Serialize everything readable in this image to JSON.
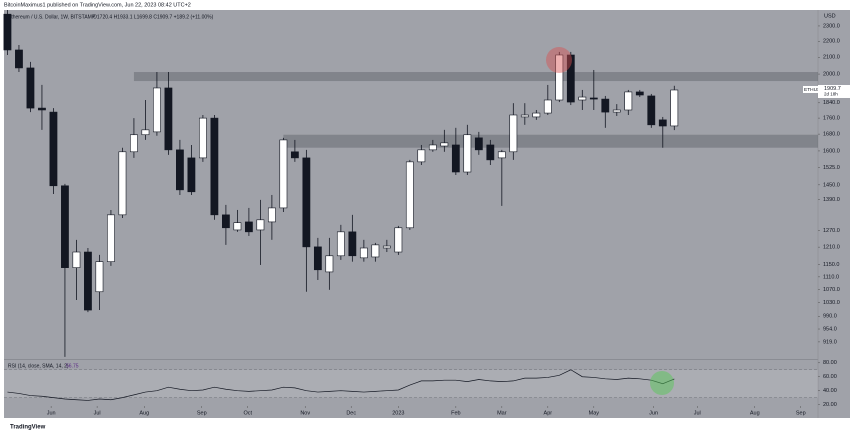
{
  "header": "BitcoinMaximus1 published on TradingView.com, Jun 22, 2023 08:42 UTC+2",
  "footer": "TradingView",
  "chart_data": [
    {
      "type": "candlestick",
      "title": "Ethereum / U.S. Dollar, 1W, BITSTAMP",
      "subtitle": "O1720.4 H1933.1 L1699.8 C1909.7 +189.2 (+11.00%)",
      "currency": "USD",
      "symbol": "ETHUSD",
      "countdown": "2d 18h",
      "log_scale": true,
      "up_color": "#ffffff",
      "down_color": "#131722",
      "open": [
        2380,
        2145,
        2036,
        1812,
        1791,
        1446,
        1140,
        1193,
        1063,
        1160,
        1329,
        1596,
        1677,
        1691,
        1921,
        1605,
        1568,
        1568,
        1760,
        1329,
        1272,
        1302,
        1272,
        1302,
        1356,
        1596,
        1568,
        1211,
        1126,
        1180,
        1265,
        1173,
        1176,
        1207,
        1193,
        1280,
        1550,
        1605,
        1623,
        1628,
        1505,
        1662,
        1628,
        1568,
        1596,
        1766,
        1766,
        1786,
        1855,
        2114,
        1855,
        1866,
        1860,
        1791,
        1802,
        1899,
        1877,
        1751,
        1720.4
      ],
      "high": [
        2409,
        2176,
        2072,
        1938,
        1812,
        1454,
        1236,
        1207,
        1183,
        1348,
        1615,
        1760,
        1855,
        2012,
        2012,
        1652,
        1628,
        1776,
        1776,
        1368,
        1348,
        1356,
        1388,
        1408,
        1662,
        1652,
        1605,
        1243,
        1243,
        1291,
        1329,
        1236,
        1225,
        1236,
        1287,
        1559,
        1628,
        1652,
        1701,
        1711,
        1726,
        1691,
        1652,
        1605,
        1838,
        1838,
        1802,
        1938,
        2133,
        2133,
        1910,
        2024,
        1877,
        1833,
        1910,
        1910,
        1888,
        1766,
        1933.1
      ],
      "low": [
        2114,
        2012,
        1791,
        1701,
        1412,
        880,
        1038,
        1002,
        1008,
        1146,
        1317,
        1568,
        1652,
        1672,
        1582,
        1408,
        1408,
        1550,
        1310,
        1218,
        1265,
        1250,
        1149,
        1236,
        1340,
        1550,
        1063,
        1100,
        1069,
        1166,
        1160,
        1160,
        1160,
        1193,
        1183,
        1272,
        1536,
        1596,
        1596,
        1492,
        1492,
        1582,
        1536,
        1364,
        1559,
        1726,
        1751,
        1776,
        1844,
        1828,
        1802,
        1802,
        1711,
        1771,
        1776,
        1871,
        1711,
        1615,
        1699.8
      ],
      "close": [
        2145,
        2036,
        1812,
        1802,
        1446,
        1140,
        1193,
        1008,
        1160,
        1329,
        1596,
        1677,
        1701,
        1921,
        1605,
        1429,
        1421,
        1760,
        1329,
        1280,
        1299,
        1265,
        1310,
        1356,
        1652,
        1568,
        1211,
        1133,
        1180,
        1265,
        1180,
        1207,
        1218,
        1214,
        1280,
        1550,
        1605,
        1628,
        1638,
        1505,
        1677,
        1605,
        1559,
        1596,
        1776,
        1776,
        1786,
        1855,
        2114,
        1844,
        1871,
        1860,
        1791,
        1802,
        1899,
        1882,
        1726,
        1720,
        1909.7
      ],
      "zones": [
        {
          "from": 1960,
          "to": 2012,
          "x0": 11
        },
        {
          "from": 1615,
          "to": 1677,
          "x0": 24
        }
      ],
      "xlim": [
        -0.3,
        70.5
      ],
      "xticks": [
        {
          "value": 3.8,
          "label": "Jun"
        },
        {
          "value": 7.8,
          "label": "Jul"
        },
        {
          "value": 11.9,
          "label": "Aug"
        },
        {
          "value": 16.9,
          "label": "Sep"
        },
        {
          "value": 20.9,
          "label": "Oct"
        },
        {
          "value": 25.9,
          "label": "Nov"
        },
        {
          "value": 29.9,
          "label": "Dec"
        },
        {
          "value": 34,
          "label": "2023"
        },
        {
          "value": 39,
          "label": "Feb"
        },
        {
          "value": 43,
          "label": "Mar"
        },
        {
          "value": 47,
          "label": "Apr"
        },
        {
          "value": 51,
          "label": "May"
        },
        {
          "value": 56.2,
          "label": "Jun"
        },
        {
          "value": 60,
          "label": "Jul"
        },
        {
          "value": 65,
          "label": "Aug"
        },
        {
          "value": 69,
          "label": "Sep"
        }
      ],
      "ylim": [
        877,
        2409
      ],
      "yticks": [
        {
          "value": 2300,
          "label": "2300.0"
        },
        {
          "value": 2200,
          "label": "2200.0"
        },
        {
          "value": 2100,
          "label": "2100.0"
        },
        {
          "value": 2000,
          "label": "2000.0"
        },
        {
          "value": 1840,
          "label": "1840.0"
        },
        {
          "value": 1760,
          "label": "1760.0"
        },
        {
          "value": 1680,
          "label": "1680.0"
        },
        {
          "value": 1600,
          "label": "1600.0"
        },
        {
          "value": 1525,
          "label": "1525.0"
        },
        {
          "value": 1450,
          "label": "1450.0"
        },
        {
          "value": 1390,
          "label": "1390.0"
        },
        {
          "value": 1270,
          "label": "1270.0"
        },
        {
          "value": 1210,
          "label": "1210.0"
        },
        {
          "value": 1150,
          "label": "1150.0"
        },
        {
          "value": 1110,
          "label": "1110.0"
        },
        {
          "value": 1070,
          "label": "1070.0"
        },
        {
          "value": 1030,
          "label": "1030.0"
        },
        {
          "value": 990,
          "label": "990.0"
        },
        {
          "value": 954,
          "label": "954.0"
        },
        {
          "value": 919,
          "label": "919.0"
        }
      ]
    },
    {
      "type": "line",
      "title": "RSI (14, close, SMA, 14, 2)",
      "color": "#131722",
      "values": [
        38,
        36,
        33,
        32,
        30,
        28,
        27,
        26,
        28,
        27,
        30,
        34,
        38,
        40,
        45,
        42,
        40,
        41,
        45,
        42,
        40,
        39,
        40,
        41,
        45,
        44,
        40,
        38,
        39,
        40,
        39,
        38,
        39,
        40,
        41,
        48,
        54,
        54,
        55,
        55,
        53,
        56,
        54,
        53,
        54,
        58,
        58,
        59,
        62,
        70,
        60,
        59,
        57,
        56,
        58,
        57,
        55,
        50,
        56.75
      ],
      "band": [
        30,
        70
      ],
      "xlim": [
        -0.3,
        70.5
      ],
      "ylim": [
        18,
        84
      ],
      "yticks": [
        {
          "value": 80,
          "label": "80.00"
        },
        {
          "value": 60,
          "label": "60.00"
        },
        {
          "value": 40,
          "label": "40.00"
        },
        {
          "value": 20,
          "label": "20.00"
        }
      ]
    }
  ]
}
